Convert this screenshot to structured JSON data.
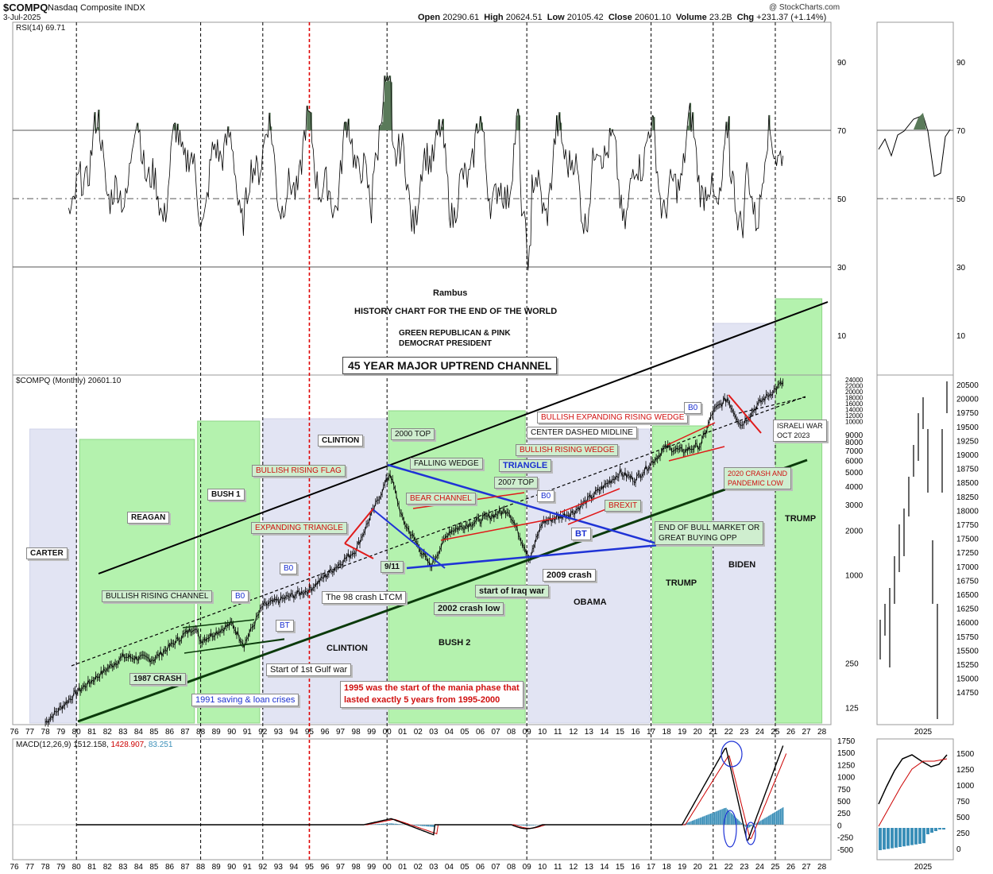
{
  "header": {
    "symbol": "$COMPQ",
    "name": "Nasdaq Composite INDX",
    "date": "3-Jul-2025",
    "open_label": "Open",
    "open": "20290.61",
    "high_label": "High",
    "high": "20624.51",
    "low_label": "Low",
    "low": "20105.42",
    "close_label": "Close",
    "close": "20601.10",
    "volume_label": "Volume",
    "volume": "23.2B",
    "chg_label": "Chg",
    "chg": "+231.37 (+1.14%)",
    "watermark": "@ StockCharts.com"
  },
  "rsi_panel": {
    "label": "RSI(14) 69.71",
    "levels": [
      90,
      70,
      50,
      30,
      10
    ]
  },
  "price_panel": {
    "label": "$COMPQ (Monthly) 20601.10",
    "log_ticks": [
      "24000",
      "22000",
      "20000",
      "18000",
      "16000",
      "14000",
      "12000",
      "10000",
      "9000",
      "8000",
      "7000",
      "6000",
      "5000",
      "4000",
      "3000",
      "2000",
      "1000",
      "250",
      "125"
    ],
    "credit": "Rambus",
    "title_line1": "HISTORY CHART FOR THE END OF THE WORLD",
    "title_line2": "GREEN REPUBLICAN & PINK",
    "title_line3": "DEMOCRAT PRESIDENT",
    "channel_title": "45 YEAR MAJOR UPTREND CHANNEL"
  },
  "presidents": [
    "CARTER",
    "REAGAN",
    "BUSH 1",
    "CLINTION",
    "CLINTION",
    "BUSH 2",
    "OBAMA",
    "TRUMP",
    "BIDEN",
    "TRUMP"
  ],
  "annotations": {
    "bullish_rising_channel": "BULLISH RISING CHANNEL",
    "bo1": "B0",
    "bt1": "BT",
    "crash_1987": "1987 CRASH",
    "gulf_war": "Start of 1st Gulf war",
    "sl_crises": "1991 saving & loan crises",
    "mania_line1": "1995 was the start of the mania phase that",
    "mania_line2": "lasted exactly 5 years from 1995-2000",
    "bo2": "B0",
    "crash_98": "The 98 crash LTCM",
    "expanding_triangle": "EXPANDING TRIANGLE",
    "bullish_rising_flag": "BULLISH RISING FLAG",
    "top_2000": "2000 TOP",
    "falling_wedge": "FALLING WEDGE",
    "triangle": "TRIANGLE",
    "bear_channel": "BEAR CHANNEL",
    "top_2007": "2007 TOP",
    "nine_eleven": "9/11",
    "crash_low_2002": "2002 crash low",
    "iraq_war": "start of Iraq war",
    "crash_2009": "2009 crash",
    "bo3": "B0",
    "bt3": "BT",
    "bullish_rising_wedge": "BULLISH RISING WEDGE",
    "center_midline": "CENTER DASHED MIDLINE",
    "brexit": "BREXIT",
    "bullish_expanding_wedge": "BULLISH EXPANDING RISING WEDGE",
    "bo4": "B0",
    "end_bull_line1": "END OF BULL MARKET OR",
    "end_bull_line2": "GREAT BUYING OPP",
    "crash_2020_line1": "2020 CRASH AND",
    "crash_2020_line2": "PANDEMIC LOW",
    "israeli_line1": "ISRAELI WAR",
    "israeli_line2": "OCT 2023"
  },
  "macd_panel": {
    "label_prefix": "MACD(12,26,9)",
    "macd": "1512.158",
    "signal": "1428.907",
    "hist": "83.251",
    "ticks": [
      "1750",
      "1500",
      "1250",
      "1000",
      "750",
      "500",
      "250",
      "0",
      "-250",
      "-500"
    ]
  },
  "x_axis_years": [
    "76",
    "77",
    "78",
    "79",
    "80",
    "81",
    "82",
    "83",
    "84",
    "85",
    "86",
    "87",
    "88",
    "89",
    "90",
    "91",
    "92",
    "93",
    "94",
    "95",
    "96",
    "97",
    "98",
    "99",
    "00",
    "01",
    "02",
    "03",
    "04",
    "05",
    "06",
    "07",
    "08",
    "09",
    "10",
    "11",
    "12",
    "13",
    "14",
    "15",
    "16",
    "17",
    "18",
    "19",
    "20",
    "21",
    "22",
    "23",
    "24",
    "25",
    "26",
    "27",
    "28"
  ],
  "side_panel": {
    "rsi_ticks": [
      "90",
      "70",
      "50",
      "30",
      "10"
    ],
    "price_ticks": [
      "20500",
      "20000",
      "19750",
      "19500",
      "19250",
      "19000",
      "18750",
      "18500",
      "18250",
      "18000",
      "17750",
      "17500",
      "17250",
      "17000",
      "16750",
      "16500",
      "16250",
      "16000",
      "15750",
      "15500",
      "15250",
      "15000",
      "14750"
    ],
    "macd_ticks": [
      "1500",
      "1250",
      "1000",
      "750",
      "500",
      "250",
      "0"
    ],
    "year": "2025"
  },
  "colors": {
    "republican": "#a8f0a0",
    "democrat": "#dde0f2",
    "rsi_fill": "#5a7a5a",
    "macd_line": "#000000",
    "signal_line": "#cc0000",
    "hist": "#3b8fb8",
    "trend_blue": "#1f33d6",
    "trend_red": "#e01a1a"
  },
  "chart_data": {
    "type": "line",
    "title": "",
    "xlabel": "",
    "ylabel": "",
    "scale": "log",
    "x": [
      1978,
      1980,
      1983,
      1985,
      1987.6,
      1988,
      1990,
      1990.8,
      1992,
      1995,
      1998,
      1999,
      2000.2,
      2001,
      2002.8,
      2004,
      2007.8,
      2009.2,
      2010,
      2012,
      2015,
      2016,
      2018,
      2019,
      2020.2,
      2021,
      2021.9,
      2022.8,
      2024,
      2025.5
    ],
    "values": [
      100,
      160,
      280,
      270,
      450,
      360,
      470,
      340,
      620,
      800,
      1500,
      2600,
      5000,
      2400,
      1150,
      2000,
      2800,
      1300,
      2300,
      2700,
      5000,
      4500,
      7500,
      7000,
      7700,
      13000,
      16000,
      10500,
      15000,
      20600
    ],
    "rsi": {
      "ylim": [
        0,
        100
      ],
      "overbought": 70,
      "oversold": 30
    }
  }
}
